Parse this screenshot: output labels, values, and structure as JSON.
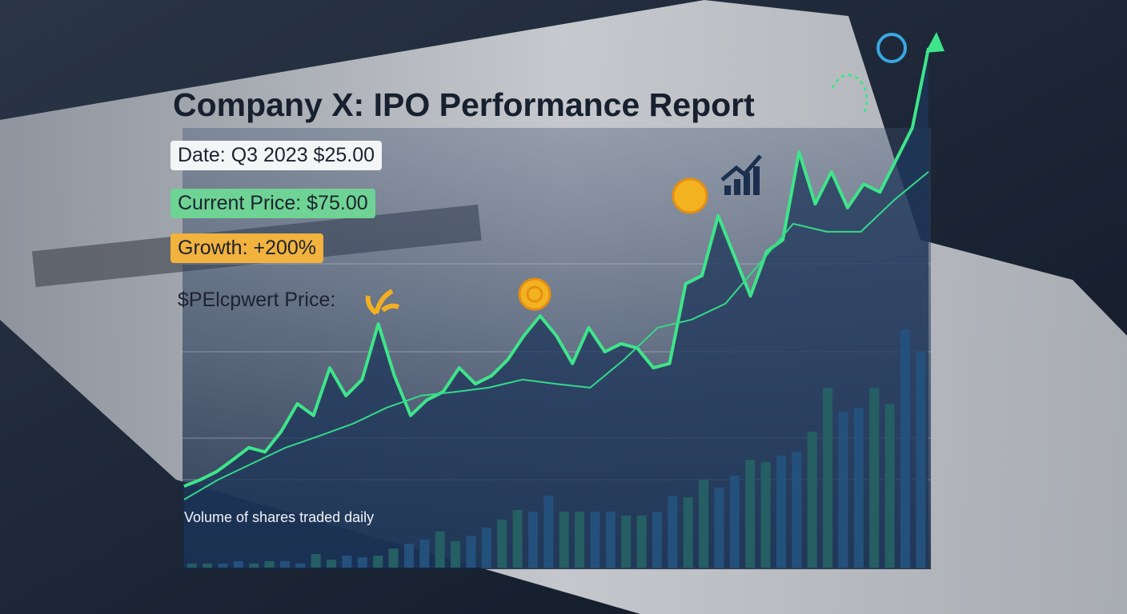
{
  "chart_data": [
    {
      "type": "line",
      "title": "Company X: IPO Performance Report",
      "annotations": [
        "Date: Q3 2023 $25.00",
        "Current Price: $75.00",
        "Growth: +200%",
        "$PElcpwert Price:"
      ],
      "series": [
        {
          "color": "#3ee58a",
          "values": [
            15.2,
            16.4,
            17.9,
            20.1,
            22.4,
            21.6,
            25.4,
            30.6,
            28.4,
            37.3,
            32.1,
            35.1,
            45.5,
            35.8,
            28.4,
            31.3,
            32.8,
            37.3,
            34.3,
            35.8,
            38.8,
            43.3,
            47.0,
            43.3,
            38.1,
            44.8,
            40.3,
            41.8,
            41.0,
            37.3,
            38.1,
            53.0,
            54.5,
            65.7,
            58.2,
            50.7,
            59.0,
            61.2,
            77.6,
            67.9,
            73.9,
            67.2,
            71.6,
            70.1,
            76.1,
            82.1,
            97.0
          ]
        },
        {
          "color": "#34d98a",
          "values": [
            12.7,
            16.4,
            19.4,
            22.4,
            24.6,
            26.9,
            29.9,
            32.1,
            32.8,
            33.6,
            35.1,
            34.3,
            33.6,
            38.8,
            44.8,
            46.3,
            49.3,
            56.7,
            64.2,
            62.7,
            62.7,
            68.7,
            73.9
          ]
        }
      ],
      "ylim": [
        0,
        100
      ]
    },
    {
      "type": "bar",
      "title": "Volume of shares traded daily",
      "values": [
        1.7,
        1.7,
        1.7,
        2.7,
        1.7,
        2.7,
        2.7,
        1.7,
        5.7,
        3.3,
        5,
        4.3,
        5,
        8,
        10,
        11.7,
        15,
        11,
        13.3,
        16.7,
        20,
        24,
        23.3,
        30,
        23.3,
        23.3,
        23.3,
        23.3,
        21.7,
        21.7,
        23.3,
        30,
        29.3,
        36.7,
        33.3,
        38.3,
        45,
        44,
        46.7,
        48.3,
        56.7,
        75,
        65,
        66.7,
        75,
        68.3,
        99.3,
        90
      ],
      "colors": [
        "#3fd67f",
        "#3a9fe3"
      ],
      "ylim": [
        0,
        100
      ]
    }
  ]
}
